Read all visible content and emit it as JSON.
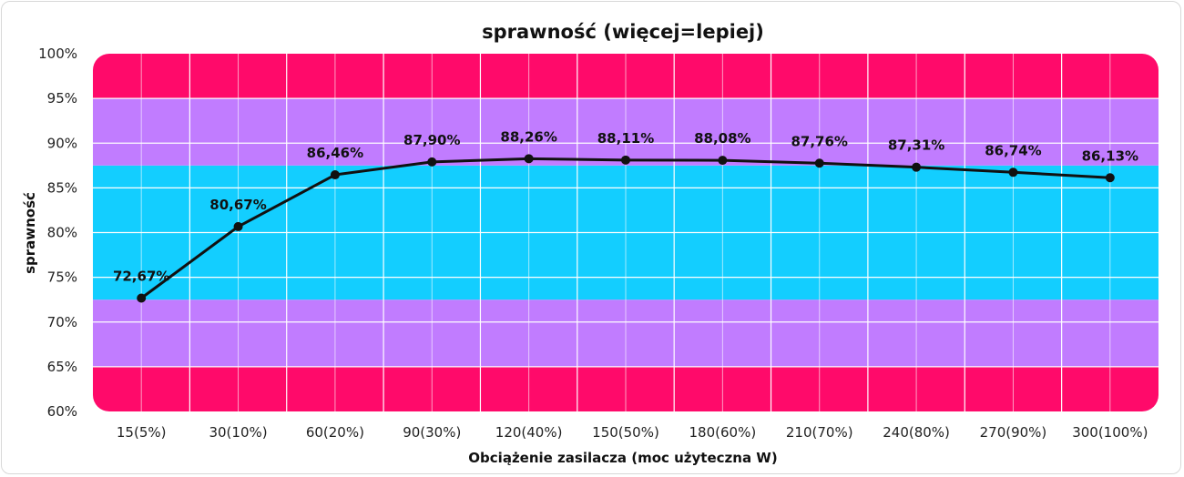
{
  "chart_data": {
    "type": "line",
    "title": "sprawność (więcej=lepiej)",
    "xlabel": "Obciążenie zasilacza (moc użyteczna W)",
    "ylabel": "sprawność",
    "categories": [
      "15(5%)",
      "30(10%)",
      "60(20%)",
      "90(30%)",
      "120(40%)",
      "150(50%)",
      "180(60%)",
      "210(70%)",
      "240(80%)",
      "270(90%)",
      "300(100%)"
    ],
    "series": [
      {
        "values": [
          72.67,
          80.67,
          86.46,
          87.9,
          88.26,
          88.11,
          88.08,
          87.76,
          87.31,
          86.74,
          86.13
        ],
        "labels": [
          "72,67%",
          "80,67%",
          "86,46%",
          "87,90%",
          "88,26%",
          "88,11%",
          "88,08%",
          "87,76%",
          "87,31%",
          "86,74%",
          "86,13%"
        ],
        "color": "#111111"
      }
    ],
    "ylim": [
      60,
      100
    ],
    "yticks": [
      "60%",
      "65%",
      "70%",
      "75%",
      "80%",
      "85%",
      "90%",
      "95%",
      "100%"
    ],
    "grid": true,
    "bands": [
      {
        "from": 60,
        "to": 65,
        "color": "#ff0a6a"
      },
      {
        "from": 65,
        "to": 72.5,
        "color": "#c17cff"
      },
      {
        "from": 72.5,
        "to": 87.5,
        "color": "#13ceff"
      },
      {
        "from": 87.5,
        "to": 95,
        "color": "#c17cff"
      },
      {
        "from": 95,
        "to": 100,
        "color": "#ff0a6a"
      }
    ]
  }
}
